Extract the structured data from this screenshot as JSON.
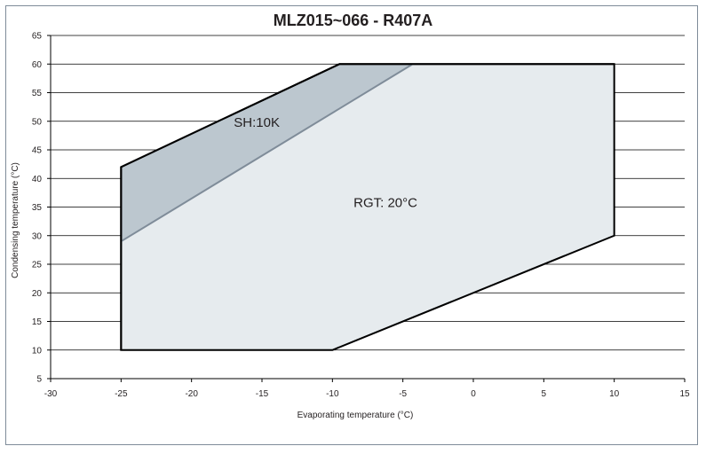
{
  "chart_data": {
    "type": "area",
    "title": "MLZ015~066 - R407A",
    "xlabel": "Evaporating temperature (°C)",
    "ylabel": "Condensing temperature (°C)",
    "xlim": [
      -30,
      15
    ],
    "ylim": [
      5,
      65
    ],
    "xticks": [
      -30,
      -25,
      -20,
      -15,
      -10,
      -5,
      0,
      5,
      10,
      15
    ],
    "yticks": [
      5,
      10,
      15,
      20,
      25,
      30,
      35,
      40,
      45,
      50,
      55,
      60,
      65
    ],
    "grid": "horizontal",
    "series": [
      {
        "name": "RGT: 20°C",
        "x": [
          -25,
          -25,
          -9.5,
          10,
          10,
          -10
        ],
        "y": [
          10,
          42,
          60,
          60,
          30,
          10
        ],
        "color": "#e6ebee",
        "stroke": "#000000"
      },
      {
        "name": "SH:10K",
        "x": [
          -25,
          -25,
          -9.5,
          -4.3
        ],
        "y": [
          29,
          42,
          60,
          60
        ],
        "color": "#bcc7cf",
        "stroke": "#7f8c99"
      }
    ],
    "annotations": [
      {
        "text": "SH:10K",
        "x": -17,
        "y": 49
      },
      {
        "text": "RGT: 20°C",
        "x": -8.5,
        "y": 35
      }
    ]
  }
}
